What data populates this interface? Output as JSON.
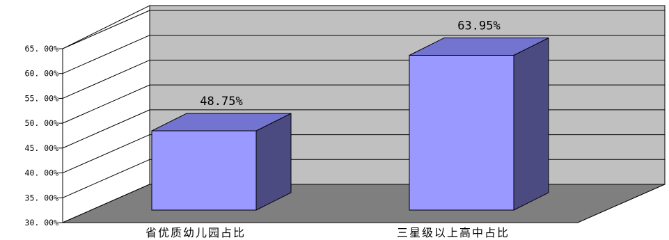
{
  "chart_data": {
    "type": "bar",
    "style": "3d-column",
    "categories": [
      "省优质幼儿园占比",
      "三星级以上高中占比"
    ],
    "values": [
      48.75,
      63.95
    ],
    "data_labels": [
      "48.75%",
      "63.95%"
    ],
    "ylim": [
      30,
      65
    ],
    "yticks": [
      30,
      35,
      40,
      45,
      50,
      55,
      60,
      65
    ],
    "ytick_labels": [
      "30. 00%",
      "35. 00%",
      "40. 00%",
      "45. 00%",
      "50. 00%",
      "55. 00%",
      "60. 00%",
      "65. 00%"
    ],
    "grid": true,
    "legend": "none",
    "colors": {
      "bar_front": "#9999ff",
      "bar_top": "#7373d0",
      "bar_side": "#4b4b82",
      "back_wall": "#c0c0c0",
      "side_wall": "#ffffff",
      "floor": "#7f7f7f",
      "outline": "#000000"
    }
  }
}
